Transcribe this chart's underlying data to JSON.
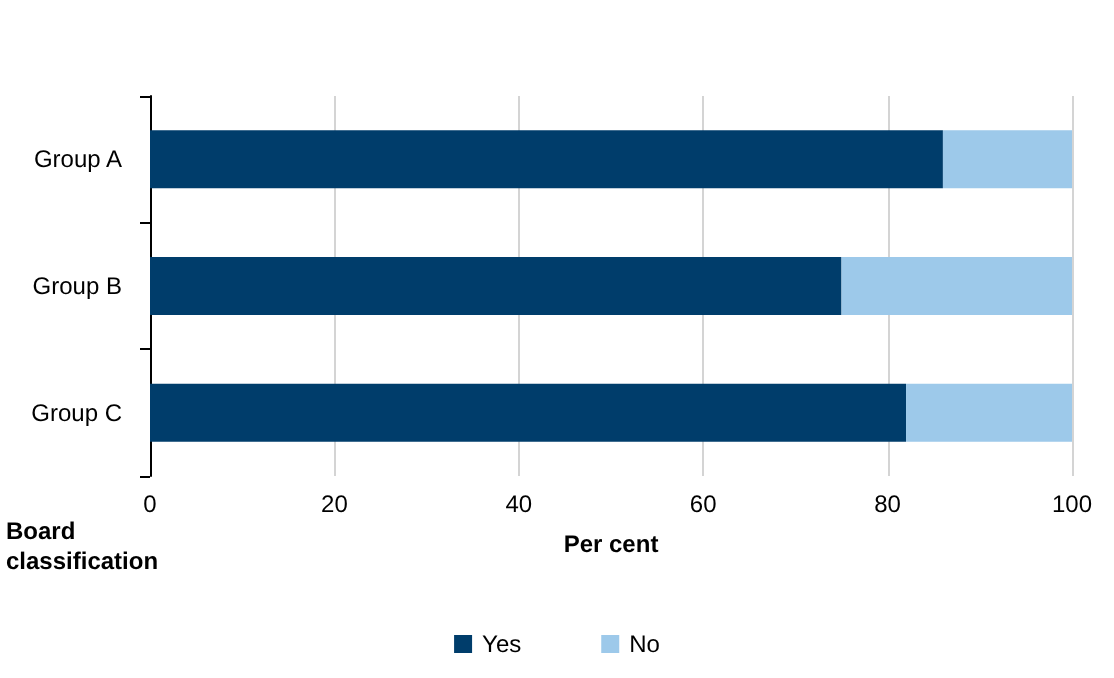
{
  "chart_data": {
    "type": "bar",
    "orientation": "horizontal",
    "stacked": true,
    "ylabel": "Board classification",
    "xlabel": "Per cent",
    "categories": [
      "Group A",
      "Group B",
      "Group C"
    ],
    "series": [
      {
        "name": "Yes",
        "color": "#003d6b",
        "values": [
          86,
          75,
          82
        ]
      },
      {
        "name": "No",
        "color": "#9dc9ea",
        "values": [
          14,
          25,
          18
        ]
      }
    ],
    "xlim": [
      0,
      100
    ],
    "xticks": [
      0,
      20,
      40,
      60,
      80,
      100
    ],
    "grid": "x",
    "legend": "bottom"
  }
}
